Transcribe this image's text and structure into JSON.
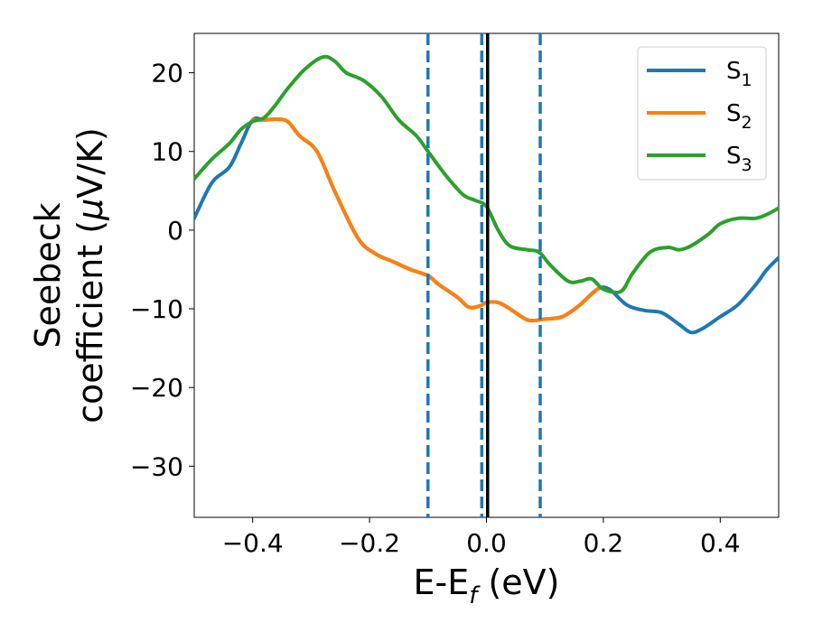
{
  "chart_data": {
    "type": "line",
    "xlabel": {
      "main": "E-E",
      "sub": "f",
      "suffix": " (eV)"
    },
    "ylabel": {
      "line1": "Seebeck",
      "line2": "coefficient  (",
      "mu": "μ",
      "unit": "V/K)"
    },
    "xlim": [
      -0.5,
      0.5
    ],
    "ylim": [
      -36.5,
      25
    ],
    "xticks": [
      -0.4,
      -0.2,
      0.0,
      0.2,
      0.4
    ],
    "xtick_labels": [
      "−0.4",
      "−0.2",
      "0.0",
      "0.2",
      "0.4"
    ],
    "yticks": [
      -30,
      -20,
      -10,
      0,
      10,
      20
    ],
    "ytick_labels": [
      "−30",
      "−20",
      "−10",
      "0",
      "10",
      "20"
    ],
    "grid": false,
    "legend_position": "top-right",
    "vertical_lines": [
      {
        "x": -0.1,
        "style": "dashed",
        "color": "#1f77b4"
      },
      {
        "x": -0.008,
        "style": "dashed",
        "color": "#1f77b4"
      },
      {
        "x": 0.002,
        "style": "solid",
        "color": "#000000"
      },
      {
        "x": 0.092,
        "style": "dashed",
        "color": "#1f77b4"
      }
    ],
    "series": [
      {
        "name": "S",
        "sub": "1",
        "color": "#1f77b4",
        "points": [
          [
            -0.5,
            1.5
          ],
          [
            -0.47,
            6
          ],
          [
            -0.44,
            8
          ],
          [
            -0.42,
            11
          ],
          [
            -0.4,
            14
          ],
          [
            -0.38,
            14
          ],
          [
            -0.36,
            14.1
          ],
          [
            -0.34,
            13.8
          ],
          [
            -0.32,
            12
          ],
          [
            -0.29,
            10
          ],
          [
            -0.26,
            5
          ],
          [
            -0.22,
            -1
          ],
          [
            -0.19,
            -3
          ],
          [
            -0.16,
            -4
          ],
          [
            -0.13,
            -5
          ],
          [
            -0.1,
            -5.8
          ],
          [
            -0.08,
            -7
          ],
          [
            -0.05,
            -8.5
          ],
          [
            -0.03,
            -9.8
          ],
          [
            -0.01,
            -9.6
          ],
          [
            0.0,
            -9.2
          ],
          [
            0.02,
            -9.2
          ],
          [
            0.04,
            -10
          ],
          [
            0.06,
            -11
          ],
          [
            0.075,
            -11.5
          ],
          [
            0.1,
            -11.3
          ],
          [
            0.13,
            -11
          ],
          [
            0.16,
            -9.5
          ],
          [
            0.19,
            -7.5
          ],
          [
            0.21,
            -7.5
          ],
          [
            0.24,
            -9.5
          ],
          [
            0.27,
            -10.2
          ],
          [
            0.3,
            -10.5
          ],
          [
            0.33,
            -12
          ],
          [
            0.35,
            -13
          ],
          [
            0.37,
            -12.5
          ],
          [
            0.4,
            -11
          ],
          [
            0.43,
            -9.5
          ],
          [
            0.46,
            -7
          ],
          [
            0.48,
            -5
          ],
          [
            0.5,
            -3.5
          ]
        ]
      },
      {
        "name": "S",
        "sub": "2",
        "color": "#ff7f0e",
        "points": [
          [
            -0.4,
            14
          ],
          [
            -0.38,
            14
          ],
          [
            -0.36,
            14.1
          ],
          [
            -0.34,
            13.8
          ],
          [
            -0.32,
            12
          ],
          [
            -0.29,
            10
          ],
          [
            -0.26,
            5
          ],
          [
            -0.22,
            -1
          ],
          [
            -0.19,
            -3
          ],
          [
            -0.16,
            -4
          ],
          [
            -0.13,
            -5
          ],
          [
            -0.1,
            -5.8
          ],
          [
            -0.08,
            -7
          ],
          [
            -0.05,
            -8.5
          ],
          [
            -0.03,
            -9.8
          ],
          [
            -0.01,
            -9.6
          ],
          [
            0.0,
            -9.2
          ],
          [
            0.02,
            -9.2
          ],
          [
            0.04,
            -10
          ],
          [
            0.06,
            -11
          ],
          [
            0.075,
            -11.5
          ],
          [
            0.1,
            -11.3
          ],
          [
            0.13,
            -11
          ],
          [
            0.16,
            -9.5
          ],
          [
            0.19,
            -7.5
          ],
          [
            0.2,
            -7.5
          ]
        ]
      },
      {
        "name": "S",
        "sub": "3",
        "color": "#2ca02c",
        "points": [
          [
            -0.5,
            6.5
          ],
          [
            -0.47,
            9
          ],
          [
            -0.44,
            11
          ],
          [
            -0.42,
            12.8
          ],
          [
            -0.4,
            13.8
          ],
          [
            -0.38,
            14.3
          ],
          [
            -0.36,
            16
          ],
          [
            -0.34,
            18
          ],
          [
            -0.31,
            20.5
          ],
          [
            -0.28,
            22
          ],
          [
            -0.26,
            21.5
          ],
          [
            -0.24,
            20
          ],
          [
            -0.21,
            19
          ],
          [
            -0.18,
            17
          ],
          [
            -0.15,
            14
          ],
          [
            -0.12,
            12
          ],
          [
            -0.1,
            10
          ],
          [
            -0.07,
            7
          ],
          [
            -0.04,
            4.5
          ],
          [
            -0.02,
            3.8
          ],
          [
            0.0,
            3
          ],
          [
            0.02,
            0
          ],
          [
            0.04,
            -2
          ],
          [
            0.07,
            -2.5
          ],
          [
            0.09,
            -2.8
          ],
          [
            0.11,
            -4.5
          ],
          [
            0.14,
            -6.5
          ],
          [
            0.16,
            -6.5
          ],
          [
            0.18,
            -6.2
          ],
          [
            0.2,
            -7.5
          ],
          [
            0.23,
            -7.8
          ],
          [
            0.25,
            -5.5
          ],
          [
            0.28,
            -2.8
          ],
          [
            0.31,
            -2.2
          ],
          [
            0.33,
            -2.5
          ],
          [
            0.35,
            -2
          ],
          [
            0.38,
            -0.5
          ],
          [
            0.4,
            0.8
          ],
          [
            0.43,
            1.5
          ],
          [
            0.46,
            1.5
          ],
          [
            0.48,
            2
          ],
          [
            0.5,
            2.8
          ]
        ]
      }
    ]
  }
}
